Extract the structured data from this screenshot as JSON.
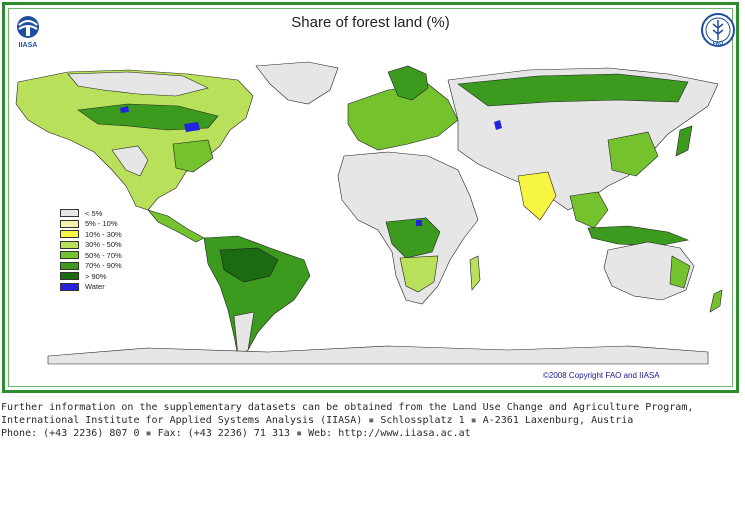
{
  "map": {
    "title": "Share of forest land (%)",
    "copyright": "©2008 Copyright FAO and IIASA",
    "logos": {
      "left": {
        "name": "iiasa-logo",
        "text": "IIASA"
      },
      "right": {
        "name": "fao-logo",
        "text": "FAO"
      }
    },
    "legend": [
      {
        "label": "< 5%",
        "color": "#e6e6e6"
      },
      {
        "label": "5% - 10%",
        "color": "#f5f0b0"
      },
      {
        "label": "10% - 30%",
        "color": "#f5f542"
      },
      {
        "label": "30% - 50%",
        "color": "#b9e05a"
      },
      {
        "label": "50% - 70%",
        "color": "#74c22d"
      },
      {
        "label": "70% - 90%",
        "color": "#3c9a1e"
      },
      {
        "label": "> 90%",
        "color": "#1b6b12"
      },
      {
        "label": "Water",
        "color": "#2323e0"
      }
    ]
  },
  "info": {
    "line1": "Further information on the supplementary datasets can be obtained from the Land Use Change and Agriculture Program,",
    "line2_a": "International Institute for Applied Systems Analysis (IIASA)",
    "line2_b": "Schlossplatz 1",
    "line2_c": "A-2361 Laxenburg, Austria",
    "line3_a": "Phone: (+43 2236) 807 0",
    "line3_b": "Fax: (+43 2236) 71 313",
    "line3_c": "Web: http://www.iiasa.ac.at",
    "separator": "▪"
  },
  "colors": {
    "frame": "#2e8b2e",
    "copyright": "#1a1a8c"
  }
}
